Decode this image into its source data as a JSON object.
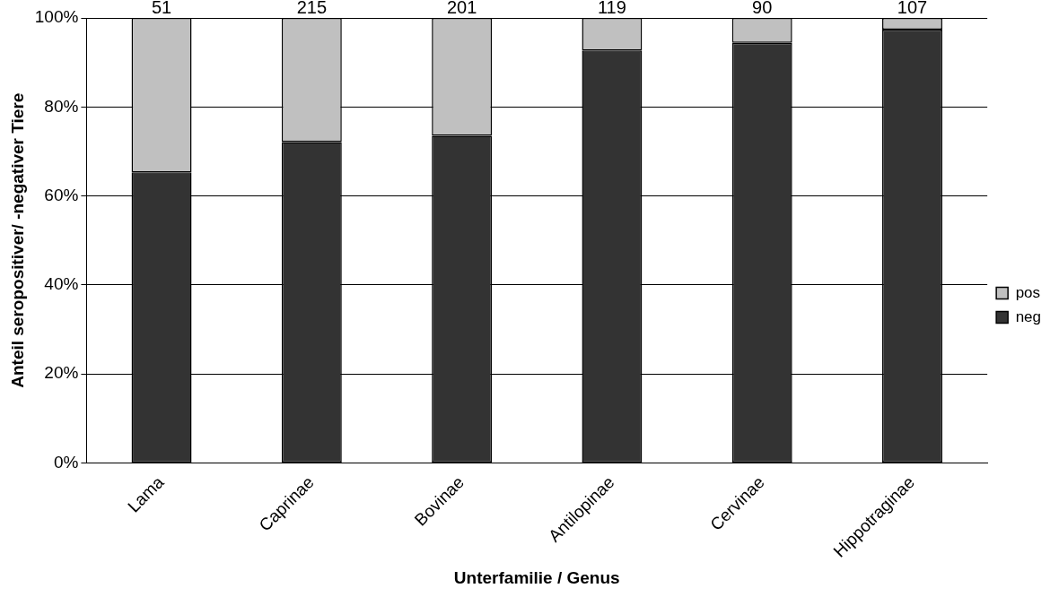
{
  "chart_data": {
    "type": "bar",
    "stacked": true,
    "xlabel": "Unterfamilie / Genus",
    "ylabel": "Anteil seropositiver/ -negativer Tiere",
    "categories": [
      "Lama",
      "Caprinae",
      "Bovinae",
      "Antilopinae",
      "Cervinae",
      "Hippotraginae"
    ],
    "series": [
      {
        "name": "neg",
        "color": "#333333",
        "values": [
          65.3,
          72.1,
          73.5,
          92.7,
          94.4,
          97.4
        ]
      },
      {
        "name": "pos",
        "color": "#c0c0c0",
        "values": [
          34.7,
          27.9,
          26.5,
          7.3,
          5.6,
          2.6
        ]
      }
    ],
    "ylim": [
      0,
      100
    ],
    "yticks": [
      {
        "value": 0,
        "label": "0%"
      },
      {
        "value": 20,
        "label": "20%"
      },
      {
        "value": 40,
        "label": "40%"
      },
      {
        "value": 60,
        "label": "60%"
      },
      {
        "value": 80,
        "label": "80%"
      },
      {
        "value": 100,
        "label": "100%"
      }
    ],
    "annotations": [
      {
        "text": "51",
        "x": "Lama",
        "y": 100
      },
      {
        "text": "215",
        "x": "Caprinae",
        "y": 100
      },
      {
        "text": "201",
        "x": "Bovinae",
        "y": 100
      },
      {
        "text": "119",
        "x": "Antilopinae",
        "y": 100
      },
      {
        "text": "90",
        "x": "Cervinae",
        "y": 100
      },
      {
        "text": "107",
        "x": "Hippotraginae",
        "y": 100
      }
    ],
    "grid": "y",
    "legend": "right"
  }
}
